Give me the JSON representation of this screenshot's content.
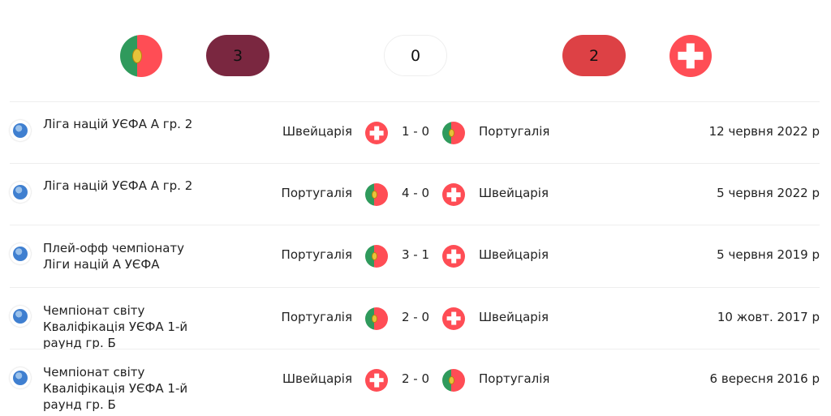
{
  "summary": {
    "team1_flag": "portugal-flag",
    "team1_wins": "3",
    "draws": "0",
    "team2_wins": "2",
    "team2_flag": "switzerland-flag",
    "colors": {
      "team1_wins": "#7a2740",
      "draws": "#ffffff",
      "team2_wins": "#dd4145"
    }
  },
  "matches": [
    {
      "competition": "Ліга націй УЄФА А гр. 2",
      "home": "Швейцарія",
      "home_flag": "ch",
      "score": "1 - 0",
      "away": "Португалія",
      "away_flag": "pt",
      "date": "12 червня 2022 р"
    },
    {
      "competition": "Ліга націй УЄФА А гр. 2",
      "home": "Португалія",
      "home_flag": "pt",
      "score": "4 - 0",
      "away": "Швейцарія",
      "away_flag": "ch",
      "date": "5 червня 2022 р"
    },
    {
      "competition": "Плей-офф чемпіонату Ліги націй А УЄФА",
      "home": "Португалія",
      "home_flag": "pt",
      "score": "3 - 1",
      "away": "Швейцарія",
      "away_flag": "ch",
      "date": "5 червня 2019 р"
    },
    {
      "competition": "Чемпіонат світу Кваліфікація УЄФА 1-й раунд гр. Б",
      "home": "Португалія",
      "home_flag": "pt",
      "score": "2 - 0",
      "away": "Швейцарія",
      "away_flag": "ch",
      "date": "10 жовт. 2017 р"
    },
    {
      "competition": "Чемпіонат світу Кваліфікація УЄФА 1-й раунд гр. Б",
      "home": "Швейцарія",
      "home_flag": "ch",
      "score": "2 - 0",
      "away": "Португалія",
      "away_flag": "pt",
      "date": "6 вересня 2016 р"
    }
  ]
}
